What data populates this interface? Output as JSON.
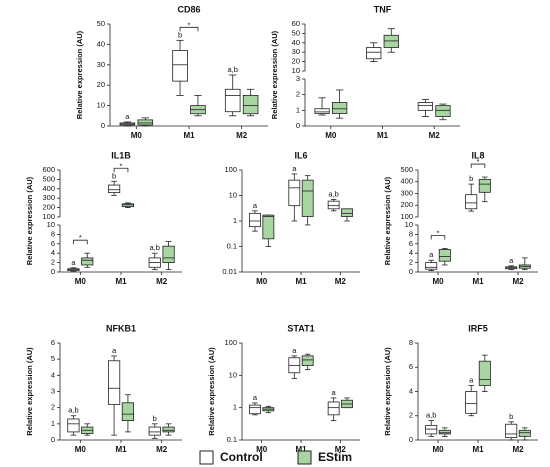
{
  "legend": [
    {
      "name": "Control",
      "color": "#ffffff"
    },
    {
      "name": "EStim",
      "color": "#a8d5a2"
    }
  ],
  "chart_data": [
    {
      "type": "box",
      "title": "CD86",
      "ylabel": "Relative expression (AU)",
      "categories": [
        "M0",
        "M1",
        "M2"
      ],
      "ylim": [
        0,
        50
      ],
      "yticks": [
        0,
        10,
        20,
        30,
        40,
        50
      ],
      "series": [
        {
          "values": [
            {
              "min": 0,
              "q1": 0.5,
              "median": 1,
              "q3": 1.5,
              "max": 2
            },
            {
              "min": 15,
              "q1": 22,
              "median": 30,
              "q3": 37,
              "max": 42
            },
            {
              "min": 5,
              "q1": 7,
              "median": 15,
              "q3": 18,
              "max": 25
            }
          ],
          "letters": [
            "a",
            "b",
            "a,b"
          ]
        },
        {
          "values": [
            {
              "min": 0,
              "q1": 0.5,
              "median": 1.5,
              "q3": 3,
              "max": 4
            },
            {
              "min": 5,
              "q1": 6,
              "median": 8,
              "q3": 10,
              "max": 15
            },
            {
              "min": 5,
              "q1": 6,
              "median": 10,
              "q3": 15,
              "max": 18
            }
          ]
        }
      ],
      "stars": [
        null,
        "*",
        null
      ]
    },
    {
      "type": "box",
      "title": "TNF",
      "ylabel": "Relative expression (AU)",
      "categories": [
        "M0",
        "M1",
        "M2"
      ],
      "ylim": [
        0,
        3
      ],
      "yticks": [
        0,
        1,
        2,
        3
      ],
      "yupperlim": [
        10,
        60
      ],
      "yupperticks": [
        10,
        20,
        30,
        40,
        50,
        60
      ],
      "series": [
        {
          "values": [
            {
              "min": 0.7,
              "q1": 0.8,
              "median": 0.9,
              "q3": 1.1,
              "max": 1.8
            },
            {
              "min": 20,
              "q1": 23,
              "median": 30,
              "q3": 35,
              "max": 40
            },
            {
              "min": 0.6,
              "q1": 1,
              "median": 1.3,
              "q3": 1.5,
              "max": 1.7
            }
          ]
        },
        {
          "values": [
            {
              "min": 0.5,
              "q1": 0.8,
              "median": 1.1,
              "q3": 1.5,
              "max": 2.3
            },
            {
              "min": 30,
              "q1": 35,
              "median": 42,
              "q3": 48,
              "max": 55
            },
            {
              "min": 0.4,
              "q1": 0.6,
              "median": 1,
              "q3": 1.3,
              "max": 1.4
            }
          ]
        }
      ]
    },
    {
      "type": "box",
      "title": "IL1B",
      "ylabel": "Relative expression (AU)",
      "categories": [
        "M0",
        "M1",
        "M2"
      ],
      "ylim": [
        0,
        10
      ],
      "yticks": [
        0,
        2,
        4,
        6,
        8,
        10
      ],
      "yupperlim": [
        100,
        600
      ],
      "yupperticks": [
        100,
        200,
        300,
        400,
        500,
        600
      ],
      "series": [
        {
          "values": [
            {
              "min": 0.2,
              "q1": 0.3,
              "median": 0.5,
              "q3": 0.7,
              "max": 0.9
            },
            {
              "min": 330,
              "q1": 360,
              "median": 390,
              "q3": 440,
              "max": 480
            },
            {
              "min": 0.5,
              "q1": 1,
              "median": 2,
              "q3": 3,
              "max": 4
            }
          ],
          "letters": [
            "a",
            "b",
            "a,b"
          ]
        },
        {
          "values": [
            {
              "min": 1,
              "q1": 1.5,
              "median": 2.5,
              "q3": 3,
              "max": 4
            },
            {
              "min": 200,
              "q1": 210,
              "median": 230,
              "q3": 240,
              "max": 250
            },
            {
              "min": 0.5,
              "q1": 2,
              "median": 3,
              "q3": 5.5,
              "max": 6.5
            }
          ]
        }
      ],
      "stars": [
        "*",
        "*",
        null
      ]
    },
    {
      "type": "box",
      "title": "IL6",
      "categories": [
        "M0",
        "M1",
        "M2"
      ],
      "log": true,
      "ylim": [
        0.01,
        100
      ],
      "yticks": [
        0.01,
        0.1,
        1,
        10,
        100
      ],
      "series": [
        {
          "values": [
            {
              "min": 0.4,
              "q1": 0.6,
              "median": 1,
              "q3": 2,
              "max": 2.5
            },
            {
              "min": 1,
              "q1": 4,
              "median": 20,
              "q3": 40,
              "max": 70
            },
            {
              "min": 2.5,
              "q1": 3,
              "median": 4,
              "q3": 6,
              "max": 7
            }
          ],
          "letters": [
            "a",
            "a",
            "a,b"
          ]
        },
        {
          "values": [
            {
              "min": 0.1,
              "q1": 0.2,
              "median": 1.5,
              "q3": 1.7,
              "max": 1.7
            },
            {
              "min": 0.7,
              "q1": 1.5,
              "median": 15,
              "q3": 40,
              "max": 60
            },
            {
              "min": 1,
              "q1": 1.5,
              "median": 2,
              "q3": 3,
              "max": 3
            }
          ]
        }
      ]
    },
    {
      "type": "box",
      "title": "IL8",
      "ylabel": "Relative expression (AU)",
      "categories": [
        "M0",
        "M1",
        "M2"
      ],
      "ylim": [
        0,
        10
      ],
      "yticks": [
        0,
        2,
        4,
        6,
        8,
        10
      ],
      "yupperlim": [
        100,
        500
      ],
      "yupperticks": [
        100,
        200,
        300,
        400,
        500
      ],
      "series": [
        {
          "values": [
            {
              "min": 0.3,
              "q1": 0.6,
              "median": 1,
              "q3": 2,
              "max": 2.5
            },
            {
              "min": 150,
              "q1": 170,
              "median": 220,
              "q3": 290,
              "max": 380
            },
            {
              "min": 0.5,
              "q1": 0.7,
              "median": 0.9,
              "q3": 1.1,
              "max": 1.3
            }
          ],
          "letters": [
            "a",
            "b",
            "a"
          ]
        },
        {
          "values": [
            {
              "min": 1.5,
              "q1": 2.3,
              "median": 3.3,
              "q3": 4.8,
              "max": 5
            },
            {
              "min": 230,
              "q1": 310,
              "median": 380,
              "q3": 420,
              "max": 440
            },
            {
              "min": 0.5,
              "q1": 0.8,
              "median": 1.2,
              "q3": 1.5,
              "max": 3
            }
          ]
        }
      ],
      "stars": [
        "*",
        "*",
        null
      ]
    },
    {
      "type": "box",
      "title": "NFKB1",
      "ylabel": "Relative expression (AU)",
      "categories": [
        "M0",
        "M1",
        "M2"
      ],
      "ylim": [
        0,
        6
      ],
      "yticks": [
        0,
        1,
        2,
        3,
        4,
        5,
        6
      ],
      "series": [
        {
          "values": [
            {
              "min": 0.3,
              "q1": 0.5,
              "median": 1,
              "q3": 1.3,
              "max": 1.5
            },
            {
              "min": 0.3,
              "q1": 2.2,
              "median": 3.2,
              "q3": 4.9,
              "max": 5.2
            },
            {
              "min": 0.1,
              "q1": 0.3,
              "median": 0.5,
              "q3": 0.8,
              "max": 1
            }
          ],
          "letters": [
            "a,b",
            "a",
            "b"
          ]
        },
        {
          "values": [
            {
              "min": 0.3,
              "q1": 0.4,
              "median": 0.6,
              "q3": 0.8,
              "max": 1
            },
            {
              "min": 0.5,
              "q1": 1.2,
              "median": 1.6,
              "q3": 2.3,
              "max": 2.8
            },
            {
              "min": 0.3,
              "q1": 0.5,
              "median": 0.6,
              "q3": 0.8,
              "max": 1
            }
          ]
        }
      ]
    },
    {
      "type": "box",
      "title": "STAT1",
      "ylabel": "Relative expression (AU)",
      "categories": [
        "M0",
        "M1",
        "M2"
      ],
      "log": true,
      "ylim": [
        0.1,
        100
      ],
      "yticks": [
        0.1,
        1,
        10,
        100
      ],
      "series": [
        {
          "values": [
            {
              "min": 0.6,
              "q1": 0.65,
              "median": 1,
              "q3": 1.2,
              "max": 1.4
            },
            {
              "min": 8,
              "q1": 12,
              "median": 20,
              "q3": 35,
              "max": 40
            },
            {
              "min": 0.4,
              "q1": 0.6,
              "median": 1,
              "q3": 1.5,
              "max": 2
            }
          ],
          "letters": [
            "a",
            "a",
            "a"
          ]
        },
        {
          "values": [
            {
              "min": 0.7,
              "q1": 0.8,
              "median": 0.9,
              "q3": 1,
              "max": 1.1
            },
            {
              "min": 15,
              "q1": 20,
              "median": 30,
              "q3": 40,
              "max": 45
            },
            {
              "min": 1,
              "q1": 1,
              "median": 1.3,
              "q3": 1.7,
              "max": 2
            }
          ]
        }
      ]
    },
    {
      "type": "box",
      "title": "IRF5",
      "ylabel": "Relative expression (AU)",
      "categories": [
        "M0",
        "M1",
        "M2"
      ],
      "ylim": [
        0,
        8
      ],
      "yticks": [
        0,
        2,
        4,
        6,
        8
      ],
      "series": [
        {
          "values": [
            {
              "min": 0.3,
              "q1": 0.5,
              "median": 0.9,
              "q3": 1.2,
              "max": 1.6
            },
            {
              "min": 2,
              "q1": 2.2,
              "median": 3,
              "q3": 4,
              "max": 4.5
            },
            {
              "min": 0,
              "q1": 0.2,
              "median": 0.5,
              "q3": 1.3,
              "max": 1.5
            }
          ],
          "letters": [
            "a,b",
            "a",
            "b"
          ]
        },
        {
          "values": [
            {
              "min": 0.3,
              "q1": 0.5,
              "median": 0.6,
              "q3": 0.8,
              "max": 1
            },
            {
              "min": 4,
              "q1": 4.5,
              "median": 5,
              "q3": 6.5,
              "max": 7
            },
            {
              "min": 0,
              "q1": 0.3,
              "median": 0.6,
              "q3": 0.8,
              "max": 1
            }
          ]
        }
      ]
    }
  ]
}
